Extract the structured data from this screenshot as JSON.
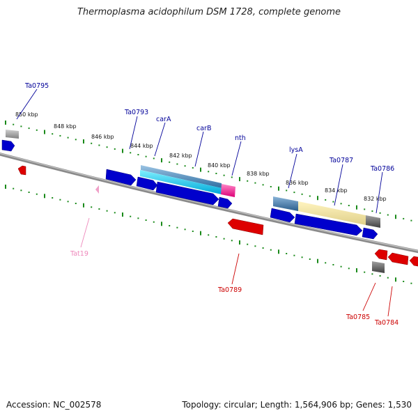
{
  "title": "Thermoplasma acidophilum DSM 1728, complete genome",
  "footer": {
    "accession": "Accession: NC_002578",
    "summary": "Topology: circular; Length: 1,564,906 bp; Genes: 1,530"
  },
  "colors": {
    "forward_gene": "#0000cc",
    "reverse_gene": "#dd0000",
    "rna_gene": "#ee88bb",
    "label_forward": "#000099",
    "label_reverse": "#cc0000",
    "label_rna": "#ee88bb",
    "tick": "#1a8a1a",
    "backbone": "#888888"
  },
  "scale_ticks": [
    "850 kbp",
    "848 kbp",
    "846 kbp",
    "844 kbp",
    "842 kbp",
    "840 kbp",
    "838 kbp",
    "836 kbp",
    "834 kbp",
    "832 kbp"
  ],
  "gene_labels": [
    {
      "name": "Ta0795",
      "strand": "forward"
    },
    {
      "name": "Ta0793",
      "strand": "forward"
    },
    {
      "name": "carA",
      "strand": "forward"
    },
    {
      "name": "carB",
      "strand": "forward"
    },
    {
      "name": "nth",
      "strand": "forward"
    },
    {
      "name": "lysA",
      "strand": "forward"
    },
    {
      "name": "Ta0787",
      "strand": "forward"
    },
    {
      "name": "Ta0786",
      "strand": "forward"
    },
    {
      "name": "Tat19",
      "strand": "rna"
    },
    {
      "name": "Ta0789",
      "strand": "reverse"
    },
    {
      "name": "Ta0785",
      "strand": "reverse"
    },
    {
      "name": "Ta0784",
      "strand": "reverse"
    }
  ]
}
